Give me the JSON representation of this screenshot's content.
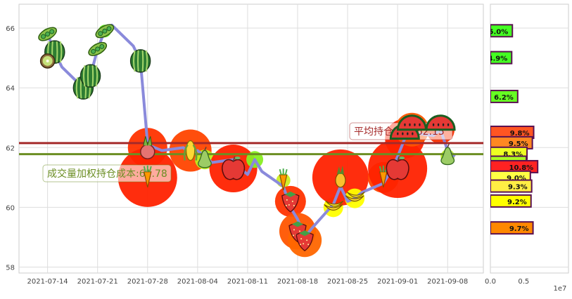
{
  "chart_data": [
    {
      "type": "line",
      "x_ticks": [
        "2021-07-14",
        "2021-07-21",
        "2021-07-28",
        "2021-08-04",
        "2021-08-11",
        "2021-08-18",
        "2021-08-25",
        "2021-09-01",
        "2021-09-08"
      ],
      "y_ticks": [
        "58",
        "60",
        "62",
        "64",
        "66"
      ],
      "ylim": [
        57.8,
        66.8
      ],
      "grid": true,
      "price_series": {
        "color": "#8a8adb",
        "points": [
          [
            "2021-07-13",
            65.7
          ],
          [
            "2021-07-14",
            65.8
          ],
          [
            "2021-07-15",
            65.2
          ],
          [
            "2021-07-16",
            64.7
          ],
          [
            "2021-07-19",
            64.0
          ],
          [
            "2021-07-20",
            64.4
          ],
          [
            "2021-07-21",
            65.3
          ],
          [
            "2021-07-22",
            65.9
          ],
          [
            "2021-07-23",
            66.1
          ],
          [
            "2021-07-26",
            65.4
          ],
          [
            "2021-07-27",
            64.9
          ],
          [
            "2021-07-28",
            62.1
          ],
          [
            "2021-07-29",
            62.0
          ],
          [
            "2021-07-30",
            61.9
          ],
          [
            "2021-08-02",
            62.0
          ],
          [
            "2021-08-03",
            61.8
          ],
          [
            "2021-08-04",
            61.9
          ],
          [
            "2021-08-05",
            61.7
          ],
          [
            "2021-08-06",
            61.5
          ],
          [
            "2021-08-09",
            61.6
          ],
          [
            "2021-08-10",
            61.3
          ],
          [
            "2021-08-11",
            61.1
          ],
          [
            "2021-08-12",
            61.6
          ],
          [
            "2021-08-13",
            61.2
          ],
          [
            "2021-08-16",
            60.7
          ],
          [
            "2021-08-17",
            60.0
          ],
          [
            "2021-08-18",
            59.6
          ],
          [
            "2021-08-19",
            59.0
          ],
          [
            "2021-08-20",
            59.3
          ],
          [
            "2021-08-23",
            60.1
          ],
          [
            "2021-08-24",
            60.7
          ],
          [
            "2021-08-25",
            60.2
          ],
          [
            "2021-08-26",
            60.3
          ],
          [
            "2021-08-27",
            60.5
          ],
          [
            "2021-08-30",
            60.8
          ],
          [
            "2021-08-31",
            61.2
          ],
          [
            "2021-09-01",
            61.7
          ],
          [
            "2021-09-02",
            62.3
          ],
          [
            "2021-09-03",
            62.5
          ],
          [
            "2021-09-06",
            62.4
          ],
          [
            "2021-09-07",
            62.6
          ],
          [
            "2021-09-08",
            61.9
          ],
          [
            "2021-09-09",
            61.7
          ]
        ]
      },
      "reference_lines": [
        {
          "name": "平均持仓成本",
          "value": 62.15,
          "color": "#a52a2a",
          "label": "平均持仓成本:62.15"
        },
        {
          "name": "成交量加权持仓成本",
          "value": 61.78,
          "color": "#6b8e23",
          "label": "成交量加权持仓成本:61.78"
        }
      ],
      "bubbles": [
        {
          "date": "2021-07-14",
          "price": 65.8,
          "size": 8,
          "color": "#66ee22",
          "icon": "pea"
        },
        {
          "date": "2021-07-15",
          "price": 65.2,
          "size": 10,
          "color": "#66ee22",
          "icon": "watermelon"
        },
        {
          "date": "2021-07-14",
          "price": 64.9,
          "size": 6,
          "color": "#66ee22",
          "icon": "kiwi"
        },
        {
          "date": "2021-07-19",
          "price": 64.0,
          "size": 12,
          "color": "#66ee22",
          "icon": "watermelon"
        },
        {
          "date": "2021-07-20",
          "price": 64.4,
          "size": 9,
          "color": "#66ee22",
          "icon": "watermelon"
        },
        {
          "date": "2021-07-21",
          "price": 65.3,
          "size": 8,
          "color": "#66ee22",
          "icon": "pea"
        },
        {
          "date": "2021-07-22",
          "price": 65.9,
          "size": 9,
          "color": "#66ee22",
          "icon": "pea"
        },
        {
          "date": "2021-07-27",
          "price": 64.9,
          "size": 12,
          "color": "#66ee22",
          "icon": "watermelon"
        },
        {
          "date": "2021-07-28",
          "price": 62.0,
          "size": 28,
          "color": "#ff3300",
          "icon": "radish"
        },
        {
          "date": "2021-07-28",
          "price": 61.0,
          "size": 42,
          "color": "#ff2200",
          "icon": "carrot"
        },
        {
          "date": "2021-08-03",
          "price": 61.9,
          "size": 30,
          "color": "#ff4400",
          "icon": "corn"
        },
        {
          "date": "2021-08-05",
          "price": 61.6,
          "size": 14,
          "color": "#bbee22",
          "icon": "pear"
        },
        {
          "date": "2021-08-09",
          "price": 61.3,
          "size": 34,
          "color": "#ff2200",
          "icon": "apple"
        },
        {
          "date": "2021-08-12",
          "price": 61.6,
          "size": 12,
          "color": "#88ee22",
          "icon": "none"
        },
        {
          "date": "2021-08-16",
          "price": 60.9,
          "size": 10,
          "color": "#ccee22",
          "icon": "carrot"
        },
        {
          "date": "2021-08-17",
          "price": 60.2,
          "size": 22,
          "color": "#ff3300",
          "icon": "strawberry"
        },
        {
          "date": "2021-08-18",
          "price": 59.2,
          "size": 26,
          "color": "#ff5500",
          "icon": "strawberry"
        },
        {
          "date": "2021-08-19",
          "price": 58.9,
          "size": 24,
          "color": "#ff6600",
          "icon": "strawberry"
        },
        {
          "date": "2021-08-23",
          "price": 60.0,
          "size": 14,
          "color": "#ffff00",
          "icon": "banana"
        },
        {
          "date": "2021-08-24",
          "price": 61.0,
          "size": 40,
          "color": "#ff2200",
          "icon": "pineapple"
        },
        {
          "date": "2021-08-26",
          "price": 60.3,
          "size": 14,
          "color": "#ffff00",
          "icon": "banana"
        },
        {
          "date": "2021-08-30",
          "price": 61.0,
          "size": 22,
          "color": "#ff4400",
          "icon": "carrot"
        },
        {
          "date": "2021-09-01",
          "price": 61.3,
          "size": 42,
          "color": "#ff2200",
          "icon": "apple"
        },
        {
          "date": "2021-09-02",
          "price": 62.3,
          "size": 28,
          "color": "#ff2200",
          "icon": "watermelon-slice"
        },
        {
          "date": "2021-09-03",
          "price": 62.6,
          "size": 24,
          "color": "#ff5500",
          "icon": "watermelon-slice"
        },
        {
          "date": "2021-09-07",
          "price": 62.6,
          "size": 20,
          "color": "#ff3300",
          "icon": "watermelon-slice"
        },
        {
          "date": "2021-09-08",
          "price": 61.7,
          "size": 10,
          "color": "#bbee22",
          "icon": "pear"
        }
      ]
    },
    {
      "type": "bar",
      "orientation": "horizontal",
      "x_ticks": [
        "0.0",
        "0.5"
      ],
      "xlim": [
        0,
        7500000
      ],
      "x_multiplier": "1e7",
      "ylim": [
        57.8,
        66.8
      ],
      "bars": [
        {
          "price": 65.9,
          "value": 3300000,
          "label": "5.0%",
          "color": "#44ff22"
        },
        {
          "price": 65.0,
          "value": 3200000,
          "label": "4.9%",
          "color": "#44ff22"
        },
        {
          "price": 63.7,
          "value": 4100000,
          "label": "6.2%",
          "color": "#66ff22"
        },
        {
          "price": 62.5,
          "value": 6500000,
          "label": "9.8%",
          "color": "#ff5522"
        },
        {
          "price": 62.15,
          "value": 6300000,
          "label": "9.5%",
          "color": "#ff8822"
        },
        {
          "price": 61.8,
          "value": 5500000,
          "label": "8.3%",
          "color": "#eeff22"
        },
        {
          "price": 61.5,
          "value": 5400000,
          "label": "8.2%",
          "color": "#aaff22"
        },
        {
          "price": 61.35,
          "value": 7100000,
          "label": "10.8%",
          "color": "#ff2222"
        },
        {
          "price": 61.0,
          "value": 6000000,
          "label": "9.0%",
          "color": "#ffff44"
        },
        {
          "price": 60.7,
          "value": 6200000,
          "label": "9.3%",
          "color": "#ffee44"
        },
        {
          "price": 60.2,
          "value": 6100000,
          "label": "9.2%",
          "color": "#ffff00"
        },
        {
          "price": 59.3,
          "value": 6400000,
          "label": "9.7%",
          "color": "#ff8800"
        }
      ]
    }
  ]
}
